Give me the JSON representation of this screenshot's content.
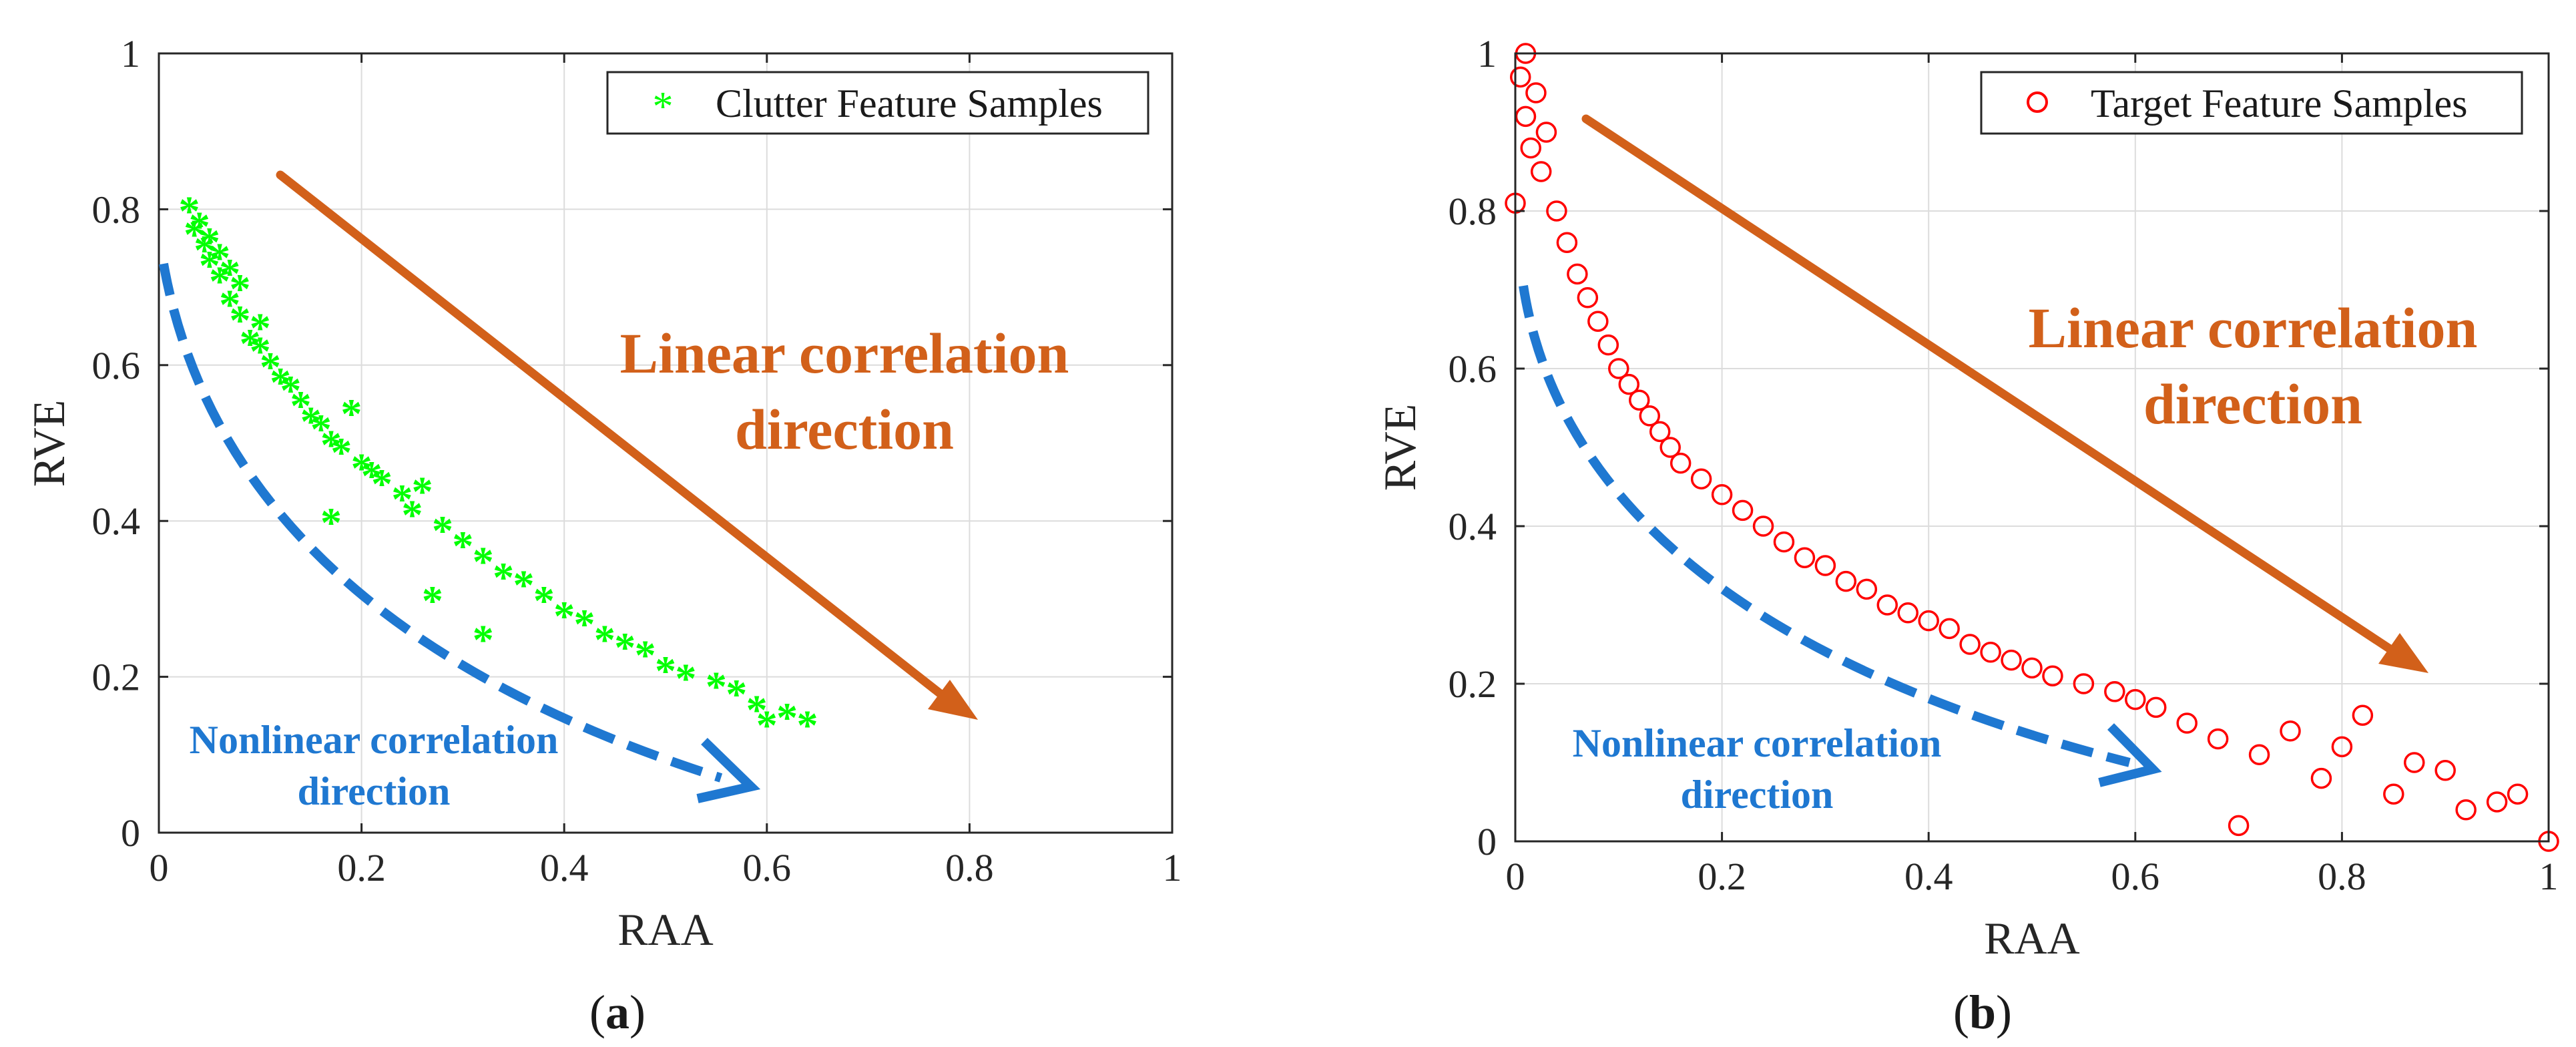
{
  "chart_data": [
    {
      "type": "scatter",
      "panel_label": "(a)",
      "panel_letter": "a",
      "xlabel": "RAA",
      "ylabel": "RVE",
      "xlim": [
        0,
        1
      ],
      "ylim": [
        0,
        1
      ],
      "xticks": [
        "0",
        "0.2",
        "0.4",
        "0.6",
        "0.8",
        "1"
      ],
      "yticks": [
        "0",
        "0.2",
        "0.4",
        "0.6",
        "0.8",
        "1"
      ],
      "grid": true,
      "legend": {
        "label": "Clutter Feature Samples",
        "marker": "asterisk",
        "color": "#00ff00",
        "placement": "top-right"
      },
      "series": [
        {
          "name": "Clutter Feature Samples",
          "marker": "asterisk",
          "color": "#00ff00",
          "points": [
            [
              0.03,
              0.8
            ],
            [
              0.035,
              0.77
            ],
            [
              0.04,
              0.78
            ],
            [
              0.045,
              0.75
            ],
            [
              0.05,
              0.73
            ],
            [
              0.05,
              0.76
            ],
            [
              0.06,
              0.71
            ],
            [
              0.06,
              0.74
            ],
            [
              0.07,
              0.68
            ],
            [
              0.07,
              0.72
            ],
            [
              0.08,
              0.66
            ],
            [
              0.08,
              0.7
            ],
            [
              0.09,
              0.63
            ],
            [
              0.1,
              0.62
            ],
            [
              0.1,
              0.65
            ],
            [
              0.11,
              0.6
            ],
            [
              0.12,
              0.58
            ],
            [
              0.13,
              0.57
            ],
            [
              0.14,
              0.55
            ],
            [
              0.15,
              0.53
            ],
            [
              0.16,
              0.52
            ],
            [
              0.17,
              0.5
            ],
            [
              0.18,
              0.49
            ],
            [
              0.19,
              0.54
            ],
            [
              0.2,
              0.47
            ],
            [
              0.21,
              0.46
            ],
            [
              0.22,
              0.45
            ],
            [
              0.24,
              0.43
            ],
            [
              0.25,
              0.41
            ],
            [
              0.26,
              0.44
            ],
            [
              0.28,
              0.39
            ],
            [
              0.3,
              0.37
            ],
            [
              0.32,
              0.35
            ],
            [
              0.32,
              0.25
            ],
            [
              0.34,
              0.33
            ],
            [
              0.36,
              0.32
            ],
            [
              0.38,
              0.3
            ],
            [
              0.4,
              0.28
            ],
            [
              0.42,
              0.27
            ],
            [
              0.44,
              0.25
            ],
            [
              0.46,
              0.24
            ],
            [
              0.48,
              0.23
            ],
            [
              0.5,
              0.21
            ],
            [
              0.52,
              0.2
            ],
            [
              0.55,
              0.19
            ],
            [
              0.57,
              0.18
            ],
            [
              0.59,
              0.16
            ],
            [
              0.6,
              0.14
            ],
            [
              0.62,
              0.15
            ],
            [
              0.64,
              0.14
            ],
            [
              0.17,
              0.4
            ],
            [
              0.27,
              0.3
            ]
          ]
        }
      ],
      "annotations": {
        "linear_line1": "Linear correlation",
        "linear_line2": "direction",
        "nonlinear_line1": "Nonlinear correlation",
        "nonlinear_line2": "direction"
      }
    },
    {
      "type": "scatter",
      "panel_label": "(b)",
      "panel_letter": "b",
      "xlabel": "RAA",
      "ylabel": "RVE",
      "xlim": [
        0,
        1
      ],
      "ylim": [
        0,
        1
      ],
      "xticks": [
        "0",
        "0.2",
        "0.4",
        "0.6",
        "0.8",
        "1"
      ],
      "yticks": [
        "0",
        "0.2",
        "0.4",
        "0.6",
        "0.8",
        "1"
      ],
      "grid": true,
      "legend": {
        "label": "Target Feature Samples",
        "marker": "circle",
        "color": "#ff0000",
        "placement": "top-right"
      },
      "series": [
        {
          "name": "Target Feature Samples",
          "marker": "circle",
          "color": "#ff0000",
          "points": [
            [
              0.0,
              0.81
            ],
            [
              0.005,
              0.97
            ],
            [
              0.01,
              1.0
            ],
            [
              0.01,
              0.92
            ],
            [
              0.015,
              0.88
            ],
            [
              0.02,
              0.95
            ],
            [
              0.025,
              0.85
            ],
            [
              0.03,
              0.9
            ],
            [
              0.04,
              0.8
            ],
            [
              0.05,
              0.76
            ],
            [
              0.06,
              0.72
            ],
            [
              0.07,
              0.69
            ],
            [
              0.08,
              0.66
            ],
            [
              0.09,
              0.63
            ],
            [
              0.1,
              0.6
            ],
            [
              0.11,
              0.58
            ],
            [
              0.12,
              0.56
            ],
            [
              0.13,
              0.54
            ],
            [
              0.14,
              0.52
            ],
            [
              0.15,
              0.5
            ],
            [
              0.16,
              0.48
            ],
            [
              0.18,
              0.46
            ],
            [
              0.2,
              0.44
            ],
            [
              0.22,
              0.42
            ],
            [
              0.24,
              0.4
            ],
            [
              0.26,
              0.38
            ],
            [
              0.28,
              0.36
            ],
            [
              0.3,
              0.35
            ],
            [
              0.32,
              0.33
            ],
            [
              0.34,
              0.32
            ],
            [
              0.36,
              0.3
            ],
            [
              0.38,
              0.29
            ],
            [
              0.4,
              0.28
            ],
            [
              0.42,
              0.27
            ],
            [
              0.44,
              0.25
            ],
            [
              0.46,
              0.24
            ],
            [
              0.48,
              0.23
            ],
            [
              0.5,
              0.22
            ],
            [
              0.52,
              0.21
            ],
            [
              0.55,
              0.2
            ],
            [
              0.58,
              0.19
            ],
            [
              0.6,
              0.18
            ],
            [
              0.62,
              0.17
            ],
            [
              0.65,
              0.15
            ],
            [
              0.68,
              0.13
            ],
            [
              0.7,
              0.02
            ],
            [
              0.72,
              0.11
            ],
            [
              0.75,
              0.14
            ],
            [
              0.78,
              0.08
            ],
            [
              0.8,
              0.12
            ],
            [
              0.82,
              0.16
            ],
            [
              0.85,
              0.06
            ],
            [
              0.87,
              0.1
            ],
            [
              0.9,
              0.09
            ],
            [
              0.92,
              0.04
            ],
            [
              0.95,
              0.05
            ],
            [
              0.97,
              0.06
            ],
            [
              1.0,
              0.0
            ]
          ]
        }
      ],
      "annotations": {
        "linear_line1": "Linear correlation",
        "linear_line2": "direction",
        "nonlinear_line1": "Nonlinear correlation",
        "nonlinear_line2": "direction"
      }
    }
  ],
  "colors": {
    "linear_arrow": "#d2601a",
    "nonlinear_arrow": "#1f78d1",
    "axis": "#262626",
    "grid": "#dcdcdc"
  }
}
